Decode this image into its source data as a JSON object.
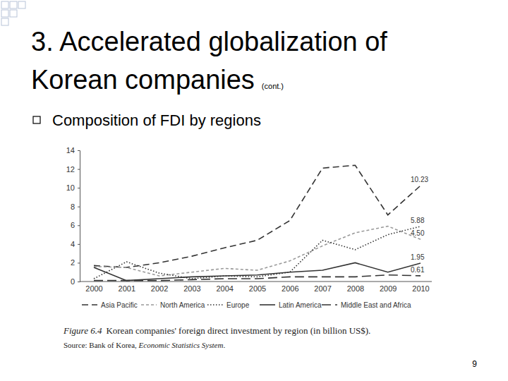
{
  "slide": {
    "title": [
      "3. Accelerated globalization of",
      "Korean companies"
    ],
    "title_note": "(cont.)",
    "bullet": "Composition of FDI by regions",
    "figure_label": "Figure 6.4",
    "source": [
      "Source: Bank of Korea, ",
      "Economic Statistics System",
      "."
    ],
    "page": "9"
  },
  "chart_data": {
    "type": "line",
    "title": "Korean companies' foreign direct investment by region (in billion US$).",
    "categories": [
      "2000",
      "2001",
      "2002",
      "2003",
      "2004",
      "2005",
      "2006",
      "2007",
      "2008",
      "2009",
      "2010"
    ],
    "series": [
      {
        "name": "Asia Pacific",
        "color": "#333333",
        "line_style": "dashed",
        "values": [
          1.7,
          1.5,
          2.0,
          2.7,
          3.6,
          4.4,
          6.5,
          12.1,
          12.4,
          7.1,
          10.23
        ]
      },
      {
        "name": "North America",
        "color": "#999999",
        "line_style": "shortdash",
        "values": [
          1.6,
          1.5,
          0.6,
          1.0,
          1.4,
          1.2,
          2.2,
          3.8,
          5.2,
          5.9,
          4.5
        ]
      },
      {
        "name": "Europe",
        "color": "#333333",
        "line_style": "dotted",
        "values": [
          0.3,
          2.1,
          0.9,
          0.3,
          0.6,
          0.5,
          1.0,
          4.4,
          3.4,
          5.0,
          5.88
        ]
      },
      {
        "name": "Latin America",
        "color": "#333333",
        "line_style": "solid",
        "values": [
          1.5,
          0.1,
          0.3,
          0.5,
          0.6,
          0.7,
          1.0,
          1.2,
          2.0,
          1.0,
          1.95
        ]
      },
      {
        "name": "Middle East and Africa",
        "color": "#333333",
        "line_style": "longdash",
        "values": [
          0.1,
          0.1,
          0.1,
          0.2,
          0.3,
          0.3,
          0.5,
          0.5,
          0.5,
          0.7,
          0.61
        ]
      }
    ],
    "annotations": [
      {
        "label": "10.23",
        "x": "2010",
        "y": 10.23
      },
      {
        "label": "5.88",
        "x": "2010",
        "y": 5.88
      },
      {
        "label": "4.50",
        "x": "2010",
        "y": 4.5
      },
      {
        "label": "1.95",
        "x": "2010",
        "y": 1.95
      },
      {
        "label": "0.61",
        "x": "2010",
        "y": 0.61
      }
    ],
    "ylim": [
      0,
      14
    ],
    "yticks": [
      0,
      2,
      4,
      6,
      8,
      10,
      12,
      14
    ],
    "grid": false,
    "legend": "bottom"
  }
}
